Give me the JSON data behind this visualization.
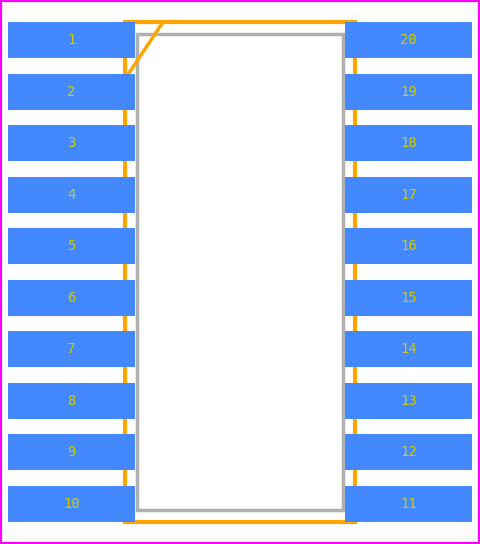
{
  "bg_color": "#ffffff",
  "border_color": "#ff00ff",
  "pin_color": "#4488ff",
  "pin_text_color": "#cccc00",
  "body_border_color": "#ffa500",
  "body_fill_color": "#ffffff",
  "body_inner_border_color": "#b0b0b0",
  "left_pins": [
    1,
    2,
    3,
    4,
    5,
    6,
    7,
    8,
    9,
    10
  ],
  "right_pins": [
    20,
    19,
    18,
    17,
    16,
    15,
    14,
    13,
    12,
    11
  ],
  "pin_font_size": 10,
  "figsize": [
    4.8,
    5.44
  ],
  "dpi": 100
}
